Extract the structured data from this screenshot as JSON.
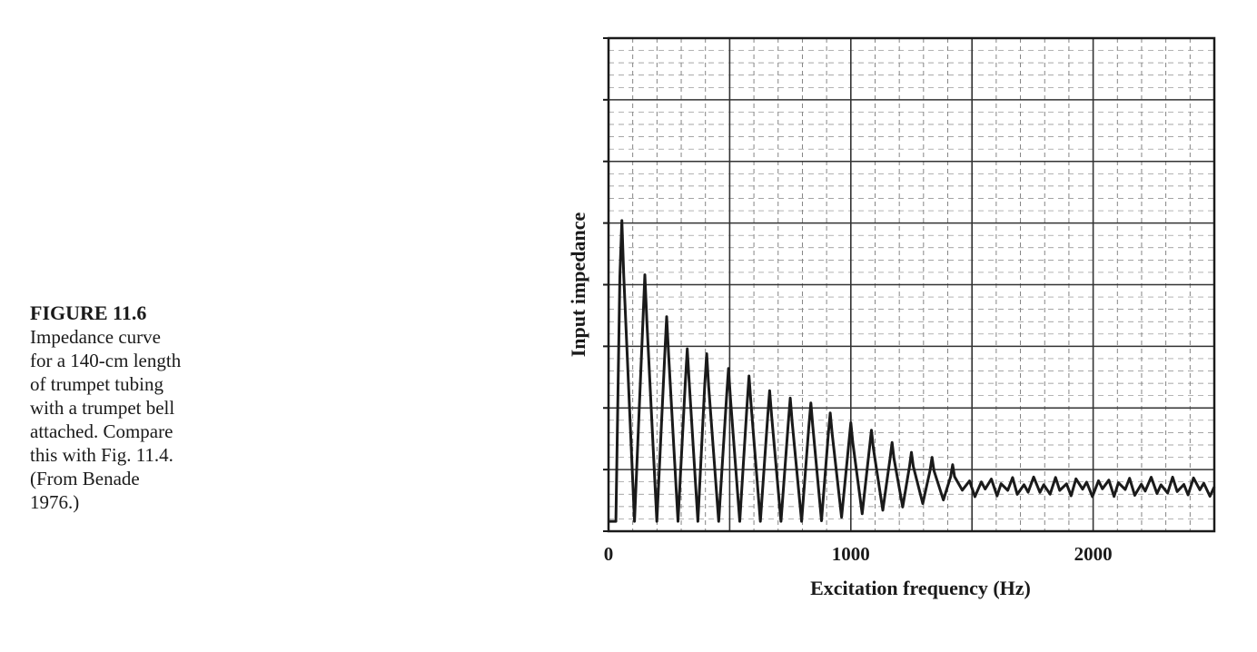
{
  "caption": {
    "figure_label": "FIGURE 11.6",
    "text": "Impedance curve\nfor a 140-cm length\nof trumpet tubing\nwith a trumpet bell\nattached. Compare\nthis with Fig. 11.4.\n(From Benade\n1976.)"
  },
  "chart_data": {
    "type": "line",
    "title": "",
    "xlabel": "Excitation frequency (Hz)",
    "ylabel": "Input impedance",
    "xlim": [
      0,
      2500
    ],
    "ylim": [
      0,
      1
    ],
    "x_ticks": [
      0,
      1000,
      2000
    ],
    "x_tick_labels": [
      "0",
      "1000",
      "2000"
    ],
    "grid": true,
    "series": [
      {
        "name": "Impedance curve",
        "peaks": [
          {
            "x": 55,
            "y": 0.63
          },
          {
            "x": 150,
            "y": 0.52
          },
          {
            "x": 240,
            "y": 0.435
          },
          {
            "x": 325,
            "y": 0.37
          },
          {
            "x": 405,
            "y": 0.36
          },
          {
            "x": 495,
            "y": 0.33
          },
          {
            "x": 580,
            "y": 0.315
          },
          {
            "x": 665,
            "y": 0.285
          },
          {
            "x": 750,
            "y": 0.27
          },
          {
            "x": 835,
            "y": 0.26
          },
          {
            "x": 915,
            "y": 0.24
          },
          {
            "x": 1000,
            "y": 0.22
          },
          {
            "x": 1085,
            "y": 0.205
          },
          {
            "x": 1170,
            "y": 0.18
          },
          {
            "x": 1250,
            "y": 0.16
          },
          {
            "x": 1335,
            "y": 0.15
          },
          {
            "x": 1420,
            "y": 0.135
          }
        ],
        "baseline_y": 0.02,
        "plateau_y": 0.09
      }
    ]
  }
}
